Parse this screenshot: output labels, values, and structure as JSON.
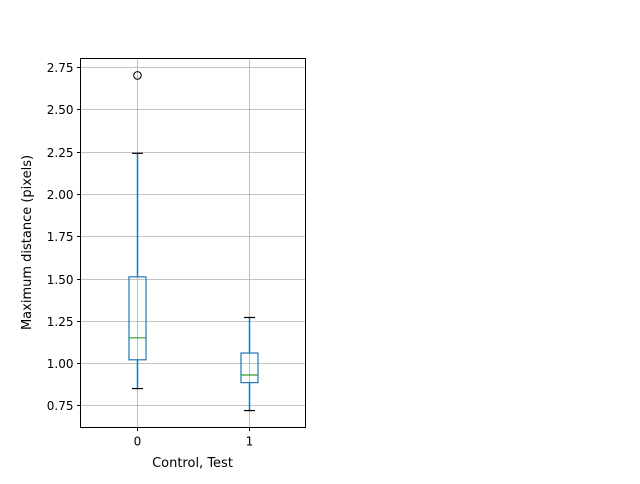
{
  "chart_data": {
    "type": "boxplot",
    "title": "",
    "xlabel": "Control, Test",
    "ylabel": "Maximum distance (pixels)",
    "categories": [
      "0",
      "1"
    ],
    "ylim": [
      0.62,
      2.8
    ],
    "xlim": [
      -0.5,
      1.5
    ],
    "yticks": [
      0.75,
      1.0,
      1.25,
      1.5,
      1.75,
      2.0,
      2.25,
      2.5,
      2.75
    ],
    "ytick_labels": [
      "0.75",
      "1.00",
      "1.25",
      "1.50",
      "1.75",
      "2.00",
      "2.25",
      "2.50",
      "2.75"
    ],
    "grid": true,
    "boxes": [
      {
        "category": "0",
        "whisker_low": 0.85,
        "q1": 1.02,
        "median": 1.15,
        "q3": 1.51,
        "whisker_high": 2.24,
        "outliers": [
          2.7
        ]
      },
      {
        "category": "1",
        "whisker_low": 0.72,
        "q1": 0.885,
        "median": 0.93,
        "q3": 1.06,
        "whisker_high": 1.27,
        "outliers": []
      }
    ],
    "colors": {
      "box": "#1f77b4",
      "median": "#2ca02c",
      "grid": "#b0b0b0",
      "caps": "#000000"
    }
  }
}
